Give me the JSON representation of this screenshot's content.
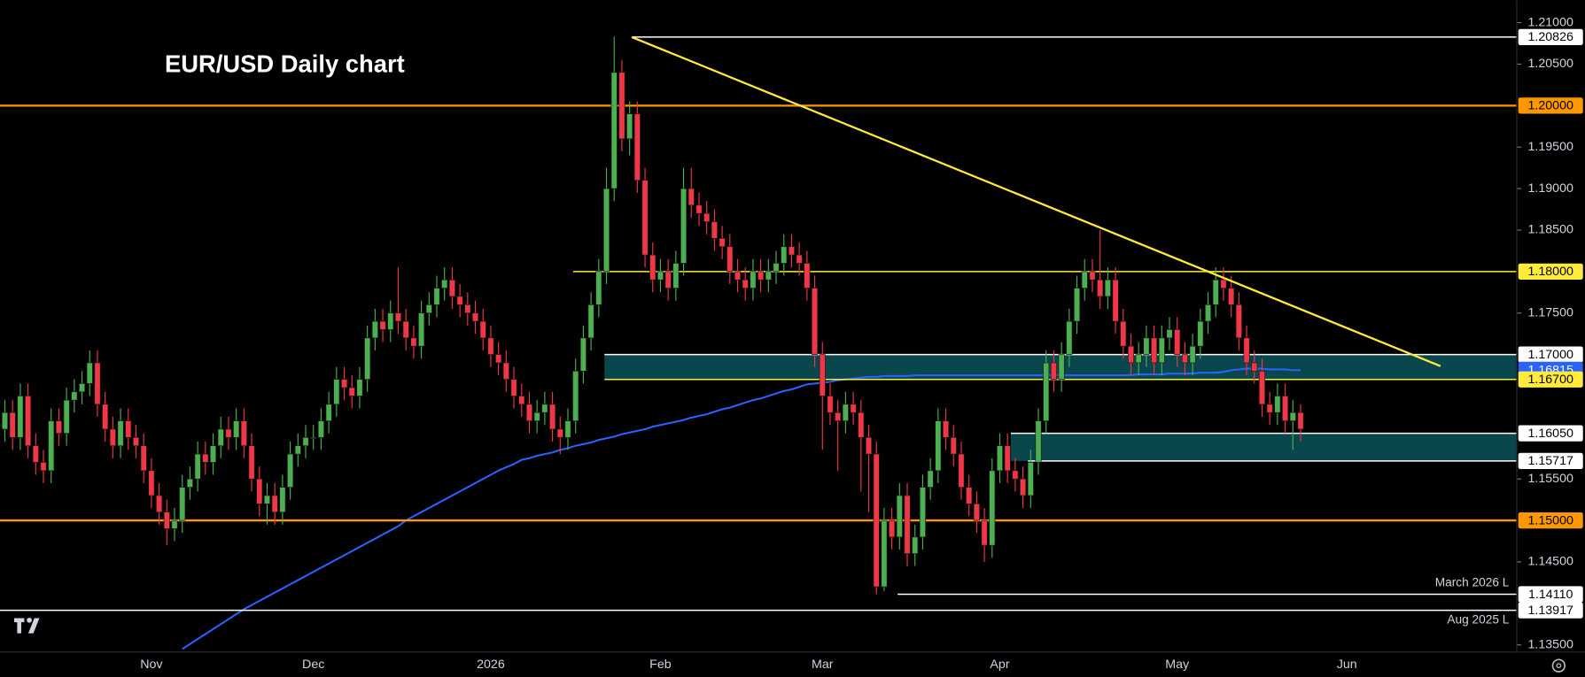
{
  "chart_data": {
    "type": "candlestick",
    "title": "EUR/USD Daily chart",
    "up_color": "#4caf50",
    "down_color": "#f23645",
    "categories": [
      null,
      null,
      null,
      null,
      null,
      null,
      null,
      null,
      null,
      null,
      null,
      null,
      null,
      null,
      null,
      null,
      null,
      null,
      null,
      "Nov",
      null,
      null,
      null,
      null,
      null,
      null,
      null,
      null,
      null,
      null,
      null,
      null,
      null,
      null,
      null,
      null,
      null,
      null,
      null,
      null,
      "Dec",
      null,
      null,
      null,
      null,
      null,
      null,
      null,
      null,
      null,
      null,
      null,
      null,
      null,
      null,
      null,
      null,
      null,
      null,
      null,
      null,
      null,
      null,
      "2026",
      null,
      null,
      null,
      null,
      null,
      null,
      null,
      null,
      null,
      null,
      null,
      null,
      null,
      null,
      null,
      null,
      null,
      null,
      null,
      null,
      null,
      "Feb",
      null,
      null,
      null,
      null,
      null,
      null,
      null,
      null,
      null,
      null,
      null,
      null,
      null,
      null,
      null,
      null,
      null,
      null,
      null,
      null,
      "Mar",
      null,
      null,
      null,
      null,
      null,
      null,
      null,
      null,
      null,
      null,
      null,
      null,
      null,
      null,
      null,
      null,
      null,
      null,
      null,
      null,
      null,
      null,
      "Apr",
      null,
      null,
      null,
      null,
      null,
      null,
      null,
      null,
      null,
      null,
      null,
      null,
      null,
      null,
      null,
      null,
      null,
      null,
      null,
      null,
      null,
      null,
      "May",
      null,
      null,
      null,
      null,
      null,
      null,
      null,
      null,
      null,
      null,
      null,
      null,
      null,
      null,
      null,
      null,
      null,
      null,
      null,
      null,
      null,
      "Jun"
    ],
    "open": [
      1.161,
      1.163,
      1.16,
      1.165,
      1.159,
      1.157,
      1.156,
      1.162,
      1.1605,
      1.1645,
      1.1655,
      1.1665,
      1.169,
      1.164,
      1.161,
      1.159,
      1.162,
      1.16,
      1.159,
      1.156,
      1.153,
      1.151,
      1.149,
      1.15,
      1.154,
      1.155,
      1.158,
      1.157,
      1.159,
      1.161,
      1.16,
      1.162,
      1.159,
      1.155,
      1.152,
      1.153,
      1.151,
      1.154,
      1.158,
      1.159,
      1.16,
      1.16,
      1.162,
      1.164,
      1.167,
      1.166,
      1.165,
      1.167,
      1.172,
      1.174,
      1.173,
      1.175,
      1.174,
      1.172,
      1.171,
      1.175,
      1.176,
      1.178,
      1.179,
      1.177,
      1.176,
      1.175,
      1.174,
      1.172,
      1.17,
      1.169,
      1.167,
      1.165,
      1.164,
      1.162,
      1.163,
      1.164,
      1.161,
      1.16,
      1.162,
      1.168,
      1.172,
      1.176,
      1.18,
      1.19,
      1.204,
      1.196,
      1.199,
      1.191,
      1.182,
      1.179,
      1.18,
      1.178,
      1.181,
      1.19,
      1.188,
      1.187,
      1.186,
      1.184,
      1.183,
      1.18,
      1.179,
      1.178,
      1.18,
      1.179,
      1.18,
      1.181,
      1.183,
      1.182,
      1.181,
      1.178,
      1.17,
      1.165,
      1.163,
      1.162,
      1.164,
      1.163,
      1.16,
      1.158,
      1.142,
      1.15,
      1.148,
      1.153,
      1.146,
      1.148,
      1.154,
      1.156,
      1.162,
      1.16,
      1.158,
      1.154,
      1.152,
      1.15,
      1.147,
      1.156,
      1.159,
      1.156,
      1.155,
      1.153,
      1.157,
      1.162,
      1.169,
      1.167,
      1.17,
      1.174,
      1.178,
      1.18,
      1.179,
      1.177,
      1.179,
      1.174,
      1.171,
      1.169,
      1.17,
      1.172,
      1.169,
      1.172,
      1.173,
      1.17,
      1.169,
      1.171,
      1.174,
      1.176,
      1.179,
      1.178,
      1.176,
      1.172,
      1.169,
      1.168,
      1.164,
      1.163,
      1.165,
      1.162,
      1.163,
      null,
      null,
      null,
      null,
      null,
      null
    ],
    "high": [
      1.1645,
      1.1645,
      1.1665,
      1.1665,
      1.1605,
      1.1585,
      1.1635,
      1.1635,
      1.166,
      1.167,
      1.168,
      1.1705,
      1.1705,
      1.1655,
      1.1625,
      1.1635,
      1.1635,
      1.1615,
      1.1605,
      1.1575,
      1.1545,
      1.1525,
      1.1515,
      1.1555,
      1.1565,
      1.1595,
      1.1595,
      1.1605,
      1.1625,
      1.1625,
      1.1635,
      1.1635,
      1.1605,
      1.1565,
      1.1545,
      1.1545,
      1.1555,
      1.1595,
      1.1605,
      1.1615,
      1.1615,
      1.1635,
      1.1655,
      1.1685,
      1.1685,
      1.1675,
      1.1685,
      1.1735,
      1.1755,
      1.1755,
      1.1765,
      1.1805,
      1.1755,
      1.1735,
      1.1765,
      1.1775,
      1.1795,
      1.1805,
      1.1805,
      1.1785,
      1.1775,
      1.1765,
      1.1755,
      1.1735,
      1.1715,
      1.1705,
      1.1685,
      1.1665,
      1.1655,
      1.1645,
      1.1655,
      1.1655,
      1.1625,
      1.1635,
      1.1695,
      1.1735,
      1.1775,
      1.1815,
      1.1925,
      1.2083,
      1.2055,
      1.2005,
      1.2005,
      1.1925,
      1.1835,
      1.1815,
      1.1815,
      1.1825,
      1.1925,
      1.1925,
      1.1895,
      1.1885,
      1.1875,
      1.1855,
      1.1845,
      1.1815,
      1.1805,
      1.1815,
      1.1815,
      1.1815,
      1.1825,
      1.1845,
      1.1845,
      1.1835,
      1.1825,
      1.1795,
      1.1715,
      1.1665,
      1.1645,
      1.1655,
      1.1655,
      1.1645,
      1.1615,
      1.1595,
      1.1515,
      1.1515,
      1.1545,
      1.1545,
      1.1495,
      1.1555,
      1.1575,
      1.1635,
      1.1635,
      1.1615,
      1.1595,
      1.1555,
      1.1535,
      1.1515,
      1.1575,
      1.1605,
      1.1605,
      1.1575,
      1.1565,
      1.1585,
      1.1635,
      1.1705,
      1.1705,
      1.1715,
      1.1755,
      1.1795,
      1.1815,
      1.1815,
      1.185,
      1.1805,
      1.1805,
      1.1755,
      1.1725,
      1.1715,
      1.1735,
      1.1735,
      1.1735,
      1.1745,
      1.1745,
      1.1715,
      1.1725,
      1.1755,
      1.1775,
      1.1805,
      1.1805,
      1.1795,
      1.1775,
      1.1735,
      1.1705,
      1.1695,
      1.1655,
      1.1665,
      1.1665,
      1.1645,
      1.164,
      null,
      null,
      null,
      null,
      null,
      null
    ],
    "low": [
      1.1595,
      1.1585,
      1.1585,
      1.1575,
      1.1555,
      1.1545,
      1.1545,
      1.159,
      1.159,
      1.163,
      1.164,
      1.165,
      1.1625,
      1.1595,
      1.1575,
      1.1575,
      1.1585,
      1.1575,
      1.1545,
      1.1515,
      1.1495,
      1.147,
      1.1475,
      1.1485,
      1.1525,
      1.1535,
      1.1555,
      1.1555,
      1.1575,
      1.1585,
      1.1585,
      1.1575,
      1.1535,
      1.1505,
      1.1495,
      1.1495,
      1.1495,
      1.1525,
      1.1565,
      1.1575,
      1.1585,
      1.1585,
      1.1605,
      1.1625,
      1.1645,
      1.1635,
      1.1635,
      1.1655,
      1.1705,
      1.1715,
      1.1715,
      1.1725,
      1.1705,
      1.1695,
      1.1695,
      1.1735,
      1.1745,
      1.1765,
      1.1755,
      1.1745,
      1.1735,
      1.1725,
      1.1705,
      1.1685,
      1.1675,
      1.1655,
      1.1635,
      1.1625,
      1.1605,
      1.1605,
      1.1615,
      1.1595,
      1.158,
      1.1585,
      1.1605,
      1.1665,
      1.1705,
      1.1745,
      1.1785,
      1.1885,
      1.1945,
      1.194,
      1.1895,
      1.1805,
      1.1775,
      1.1775,
      1.1765,
      1.1765,
      1.1795,
      1.1865,
      1.1855,
      1.1845,
      1.1825,
      1.1815,
      1.1785,
      1.1775,
      1.1765,
      1.1765,
      1.1775,
      1.1775,
      1.1785,
      1.1795,
      1.1805,
      1.1795,
      1.1765,
      1.1685,
      1.1585,
      1.1615,
      1.156,
      1.1605,
      1.1615,
      1.1535,
      1.151,
      1.1411,
      1.1415,
      1.1465,
      1.1465,
      1.1445,
      1.1445,
      1.1465,
      1.1525,
      1.1545,
      1.1585,
      1.1565,
      1.1525,
      1.1505,
      1.1485,
      1.145,
      1.1455,
      1.1545,
      1.1545,
      1.1535,
      1.1515,
      1.1515,
      1.1555,
      1.1605,
      1.1655,
      1.1655,
      1.1685,
      1.1725,
      1.1765,
      1.1775,
      1.1755,
      1.1755,
      1.1725,
      1.1695,
      1.1675,
      1.1675,
      1.1685,
      1.1675,
      1.1675,
      1.1705,
      1.1685,
      1.1675,
      1.1675,
      1.1695,
      1.1725,
      1.1745,
      1.1765,
      1.1745,
      1.1705,
      1.1675,
      1.1665,
      1.1625,
      1.1615,
      1.1615,
      1.1605,
      1.1585,
      1.1595,
      null,
      null,
      null,
      null,
      null,
      null
    ],
    "close": [
      1.163,
      1.16,
      1.165,
      1.159,
      1.157,
      1.156,
      1.162,
      1.1605,
      1.1645,
      1.1655,
      1.1665,
      1.169,
      1.164,
      1.161,
      1.159,
      1.162,
      1.16,
      1.159,
      1.156,
      1.153,
      1.151,
      1.149,
      1.15,
      1.154,
      1.155,
      1.158,
      1.157,
      1.159,
      1.161,
      1.16,
      1.162,
      1.159,
      1.155,
      1.152,
      1.153,
      1.151,
      1.154,
      1.158,
      1.159,
      1.16,
      1.16,
      1.162,
      1.164,
      1.167,
      1.166,
      1.165,
      1.167,
      1.172,
      1.174,
      1.173,
      1.175,
      1.174,
      1.172,
      1.171,
      1.175,
      1.176,
      1.178,
      1.179,
      1.177,
      1.176,
      1.175,
      1.174,
      1.172,
      1.17,
      1.169,
      1.167,
      1.165,
      1.164,
      1.162,
      1.163,
      1.164,
      1.161,
      1.16,
      1.162,
      1.168,
      1.172,
      1.176,
      1.18,
      1.19,
      1.204,
      1.196,
      1.199,
      1.191,
      1.182,
      1.179,
      1.18,
      1.178,
      1.181,
      1.19,
      1.188,
      1.187,
      1.186,
      1.184,
      1.183,
      1.18,
      1.179,
      1.178,
      1.18,
      1.179,
      1.18,
      1.181,
      1.183,
      1.182,
      1.181,
      1.178,
      1.17,
      1.165,
      1.163,
      1.162,
      1.164,
      1.163,
      1.16,
      1.158,
      1.142,
      1.15,
      1.148,
      1.153,
      1.146,
      1.148,
      1.154,
      1.156,
      1.162,
      1.16,
      1.158,
      1.154,
      1.152,
      1.15,
      1.147,
      1.156,
      1.159,
      1.156,
      1.155,
      1.153,
      1.157,
      1.162,
      1.169,
      1.167,
      1.17,
      1.174,
      1.178,
      1.18,
      1.179,
      1.177,
      1.179,
      1.174,
      1.171,
      1.169,
      1.17,
      1.172,
      1.169,
      1.172,
      1.173,
      1.17,
      1.169,
      1.171,
      1.174,
      1.176,
      1.179,
      1.178,
      1.176,
      1.172,
      1.169,
      1.168,
      1.164,
      1.163,
      1.165,
      1.162,
      1.163,
      1.161,
      null,
      null,
      null,
      null,
      null,
      null
    ],
    "moving_average": {
      "color": "#2962ff",
      "values": [
        null,
        null,
        null,
        null,
        null,
        null,
        null,
        null,
        null,
        null,
        null,
        null,
        null,
        null,
        null,
        null,
        null,
        null,
        null,
        null,
        null,
        null,
        null,
        1.1345,
        1.1351,
        1.1357,
        1.1363,
        1.1369,
        1.1375,
        1.1381,
        1.1387,
        1.1393,
        1.1398,
        1.1403,
        1.1408,
        1.1413,
        1.1418,
        1.1423,
        1.1428,
        1.1433,
        1.1438,
        1.1443,
        1.1448,
        1.1453,
        1.1458,
        1.1463,
        1.1468,
        1.1473,
        1.1478,
        1.1483,
        1.1488,
        1.1493,
        1.15,
        1.1505,
        1.151,
        1.1515,
        1.152,
        1.1525,
        1.153,
        1.1535,
        1.154,
        1.1545,
        1.155,
        1.1555,
        1.156,
        1.1564,
        1.1568,
        1.1573,
        1.1575,
        1.1578,
        1.158,
        1.1582,
        1.1585,
        1.1587,
        1.159,
        1.1592,
        1.1594,
        1.1597,
        1.1599,
        1.1601,
        1.1604,
        1.1606,
        1.1608,
        1.161,
        1.1613,
        1.1615,
        1.1617,
        1.1619,
        1.1621,
        1.1624,
        1.1626,
        1.1628,
        1.1631,
        1.1634,
        1.1636,
        1.1639,
        1.1642,
        1.1645,
        1.1647,
        1.165,
        1.1653,
        1.1656,
        1.1658,
        1.1661,
        1.1664,
        1.1665,
        1.1666,
        1.1667,
        1.1669,
        1.167,
        1.1671,
        1.1672,
        1.1673,
        1.1673,
        1.1674,
        1.1674,
        1.1674,
        1.1674,
        1.1675,
        1.1675,
        1.1675,
        1.1675,
        1.1675,
        1.1675,
        1.1675,
        1.1675,
        1.1675,
        1.1675,
        1.1675,
        1.1675,
        1.1675,
        1.1675,
        1.1675,
        1.1675,
        1.1675,
        1.1675,
        1.1675,
        1.1675,
        1.1675,
        1.1675,
        1.1675,
        1.1675,
        1.1675,
        1.1675,
        1.1675,
        1.1675,
        1.1675,
        1.1676,
        1.1676,
        1.1676,
        1.1676,
        1.1677,
        1.1677,
        1.1677,
        1.1677,
        1.1678,
        1.1678,
        1.1678,
        1.1679,
        1.1681,
        1.1682,
        1.1683,
        1.1683,
        1.1683,
        1.1682,
        1.1682,
        1.1682,
        1.1681,
        1.1681,
        null,
        null,
        null,
        null,
        null,
        null
      ]
    },
    "trendline": {
      "color": "#ffeb3b",
      "values": [
        1.20826,
        1.1686
      ]
    },
    "zone_color": "#0b4f55",
    "levels": [
      {
        "value": 1.20826,
        "label": "1.20826",
        "color": "#ffffff",
        "label_color": "#000000"
      },
      {
        "value": 1.2,
        "label": "1.20000",
        "color": "#ff9800",
        "label_color": "#000000"
      },
      {
        "value": 1.18,
        "label": "1.18000",
        "color": "#ffeb3b",
        "label_color": "#000000"
      },
      {
        "value": 1.17,
        "label": "1.17000",
        "color": "#ffffff",
        "label_color": "#000000"
      },
      {
        "value": 1.16815,
        "label": "1.16815",
        "color": "#2962ff",
        "label_color": "#ffffff"
      },
      {
        "value": 1.167,
        "label": "1.16700",
        "color": "#ffeb3b",
        "label_color": "#000000"
      },
      {
        "value": 1.1605,
        "label": "1.16050",
        "color": "#ffffff",
        "label_color": "#000000"
      },
      {
        "value": 1.15717,
        "label": "1.15717",
        "color": "#ffffff",
        "label_color": "#000000"
      },
      {
        "value": 1.15,
        "label": "1.15000",
        "color": "#ff9800",
        "label_color": "#000000"
      },
      {
        "value": 1.1411,
        "label": "1.14110",
        "color": "#ffffff",
        "label_color": "#000000",
        "note": "March 2026 L"
      },
      {
        "value": 1.13917,
        "label": "1.13917",
        "color": "#ffffff",
        "label_color": "#000000",
        "note": "Aug 2025 L"
      }
    ],
    "ylim": [
      1.1342,
      1.2127
    ],
    "yticks": [
      {
        "value": 1.21,
        "label": "1.21000"
      },
      {
        "value": 1.205,
        "label": "1.20500"
      },
      {
        "value": 1.195,
        "label": "1.19500"
      },
      {
        "value": 1.19,
        "label": "1.19000"
      },
      {
        "value": 1.185,
        "label": "1.18500"
      },
      {
        "value": 1.175,
        "label": "1.17500"
      },
      {
        "value": 1.155,
        "label": "1.15500"
      },
      {
        "value": 1.145,
        "label": "1.14500"
      },
      {
        "value": 1.135,
        "label": "1.13500"
      }
    ]
  }
}
